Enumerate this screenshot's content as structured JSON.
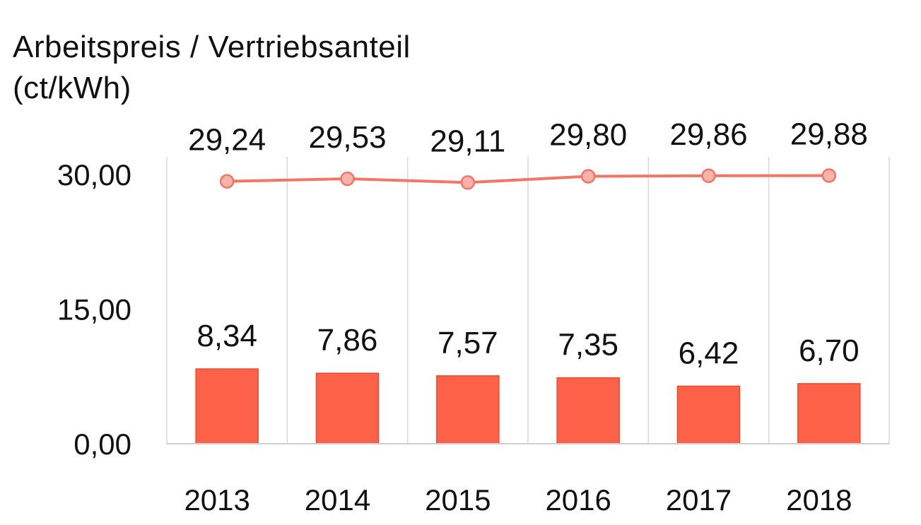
{
  "chart_data": {
    "type": "bar",
    "title_line1": "Arbeitspreis  / Vertriebsanteil",
    "title_line2": "(ct/kWh)",
    "categories": [
      "2013",
      "2014",
      "2015",
      "2016",
      "2017",
      "2018"
    ],
    "series": [
      {
        "type": "line",
        "values": [
          29.24,
          29.53,
          29.11,
          29.8,
          29.86,
          29.88
        ],
        "labels": [
          "29,24",
          "29,53",
          "29,11",
          "29,80",
          "29,86",
          "29,88"
        ],
        "color": "#f47564"
      },
      {
        "type": "bar",
        "values": [
          8.34,
          7.86,
          7.57,
          7.35,
          6.42,
          6.7
        ],
        "labels": [
          "8,34",
          "7,86",
          "7,57",
          "7,35",
          "6,42",
          "6,70"
        ],
        "color": "#fd6148"
      }
    ],
    "y_ticks": [
      0,
      15,
      30
    ],
    "y_tick_labels": [
      "0,00",
      "15,00",
      "30,00"
    ],
    "ylim": [
      0,
      30
    ],
    "grid": "vertical"
  }
}
